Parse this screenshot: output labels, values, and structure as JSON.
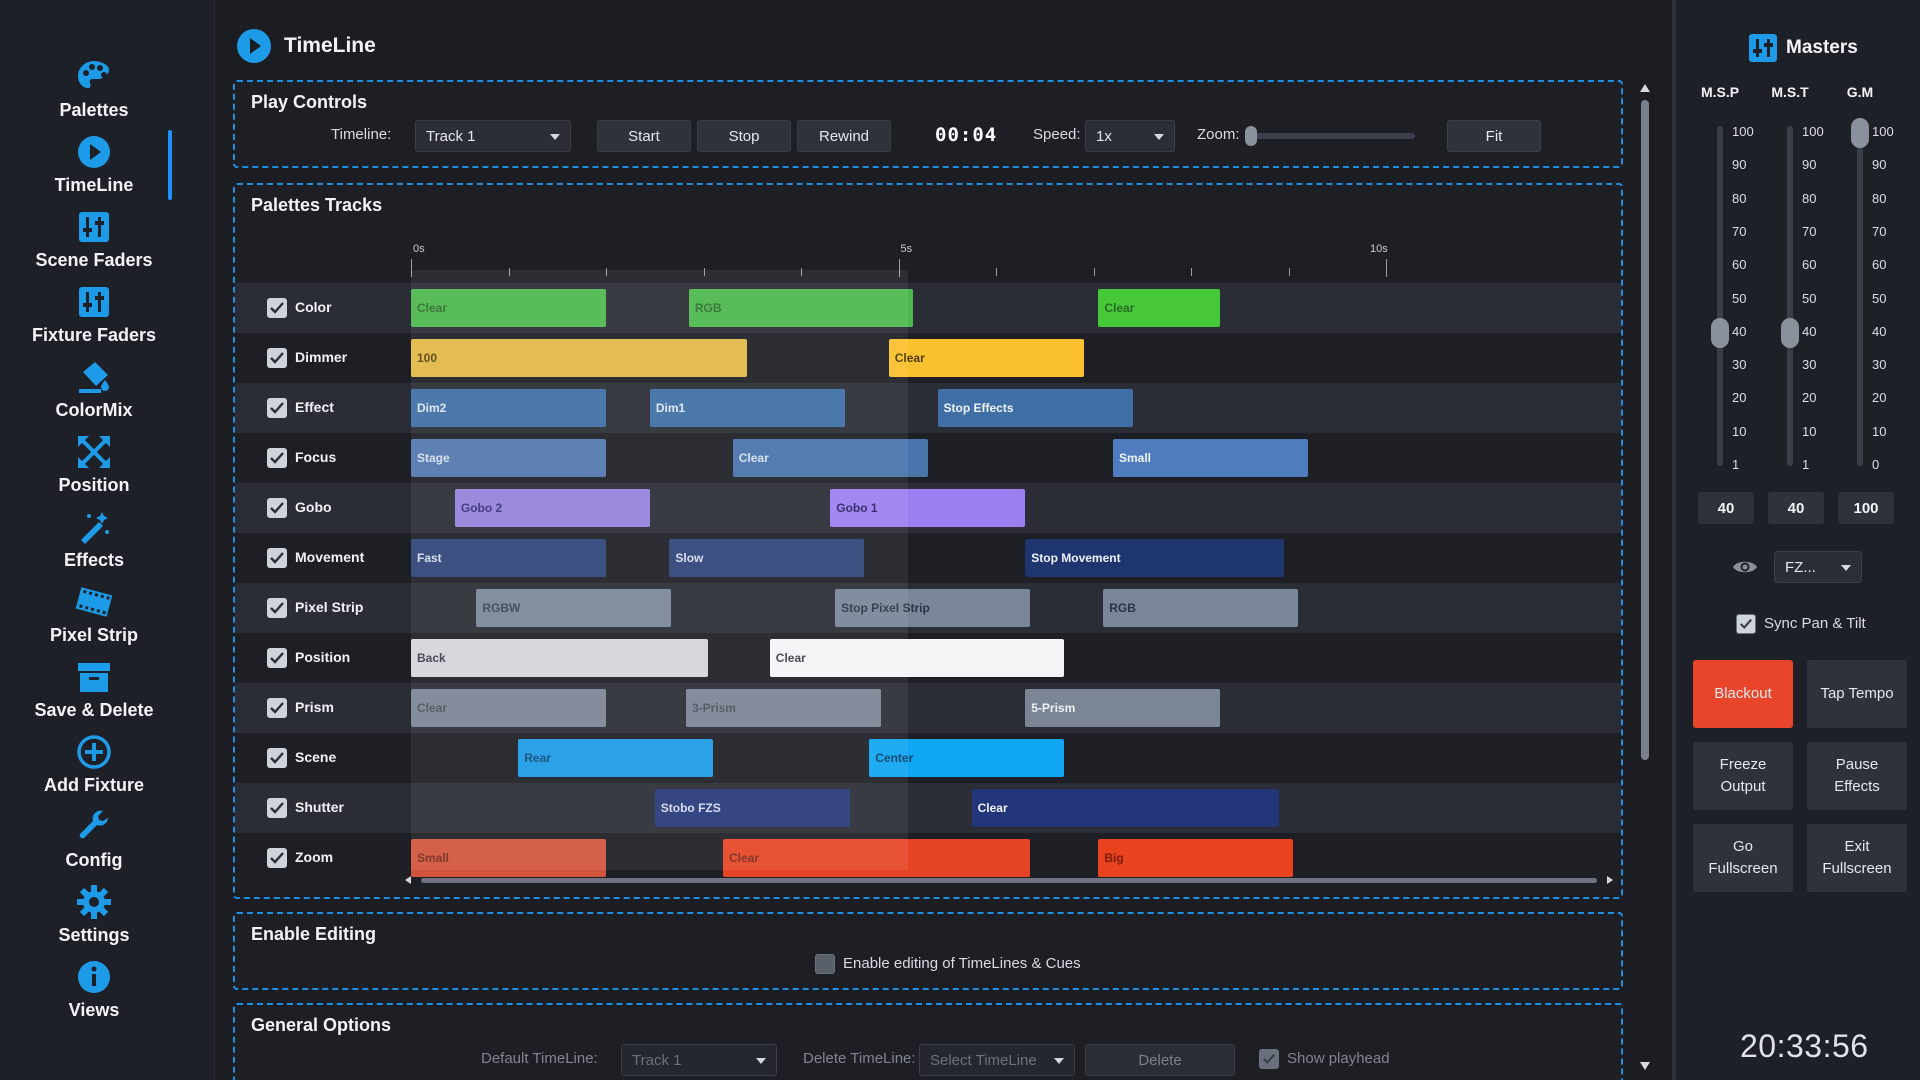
{
  "sidebar": {
    "items": [
      {
        "label": "Palettes",
        "icon": "palette-icon"
      },
      {
        "label": "TimeLine",
        "icon": "play-circle-icon"
      },
      {
        "label": "Scene Faders",
        "icon": "faders-icon"
      },
      {
        "label": "Fixture Faders",
        "icon": "faders-icon"
      },
      {
        "label": "ColorMix",
        "icon": "paint-bucket-icon"
      },
      {
        "label": "Position",
        "icon": "arrows-expand-icon"
      },
      {
        "label": "Effects",
        "icon": "magic-wand-icon"
      },
      {
        "label": "Pixel Strip",
        "icon": "film-strip-icon"
      },
      {
        "label": "Save & Delete",
        "icon": "archive-box-icon"
      },
      {
        "label": "Add Fixture",
        "icon": "plus-circle-icon"
      },
      {
        "label": "Config",
        "icon": "wrench-icon"
      },
      {
        "label": "Settings",
        "icon": "gear-icon"
      },
      {
        "label": "Views",
        "icon": "info-circle-icon"
      }
    ],
    "active": "TimeLine"
  },
  "main": {
    "title": "TimeLine",
    "play_controls": {
      "title": "Play Controls",
      "timeline_label": "Timeline:",
      "timeline_value": "Track 1",
      "start": "Start",
      "stop": "Stop",
      "rewind": "Rewind",
      "time": "00:04",
      "speed_label": "Speed:",
      "speed_value": "1x",
      "zoom_label": "Zoom:",
      "zoom_level": 0,
      "fit": "Fit"
    },
    "tracks_section": {
      "title": "Palettes Tracks",
      "ruler": [
        "0s",
        "5s",
        "10s"
      ],
      "tracks": [
        {
          "name": "Color",
          "cues": [
            {
              "label": "Clear",
              "color": "#4cb84c",
              "text": "#2f6e2f"
            },
            {
              "label": "RGB",
              "color": "#4cb84c",
              "text": "#2f6e2f"
            },
            {
              "label": "Clear",
              "color": "#46c83a",
              "text": "#2b6a22"
            }
          ]
        },
        {
          "name": "Dimmer",
          "cues": [
            {
              "label": "100",
              "color": "#e1b748",
              "text": "#5a4410"
            },
            {
              "label": "Clear",
              "color": "#fbc02d",
              "text": "#4d3a00"
            }
          ]
        },
        {
          "name": "Effect",
          "cues": [
            {
              "label": "Dim2",
              "color": "#3f6fa5",
              "text": "#dce6f3"
            },
            {
              "label": "Dim1",
              "color": "#3f6fa5",
              "text": "#dce6f3"
            },
            {
              "label": "Stop Effects",
              "color": "#3f6fa5",
              "text": "#eef3fa"
            }
          ]
        },
        {
          "name": "Focus",
          "cues": [
            {
              "label": "Stage",
              "color": "#5277ad",
              "text": "#d5e0ee"
            },
            {
              "label": "Clear",
              "color": "#4873ab",
              "text": "#d5e0ee"
            },
            {
              "label": "Small",
              "color": "#4f7cbf",
              "text": "#eef3fa"
            }
          ]
        },
        {
          "name": "Gobo",
          "cues": [
            {
              "label": "Gobo 2",
              "color": "#9482dc",
              "text": "#3a2d78"
            },
            {
              "label": "Gobo 1",
              "color": "#9c7ff0",
              "text": "#2d1f66"
            }
          ]
        },
        {
          "name": "Movement",
          "cues": [
            {
              "label": "Fast",
              "color": "#2e4478",
              "text": "#d5ddee"
            },
            {
              "label": "Slow",
              "color": "#2e4478",
              "text": "#d5ddee"
            },
            {
              "label": "Stop Movement",
              "color": "#1f3570",
              "text": "#eef2fa"
            }
          ]
        },
        {
          "name": "Pixel Strip",
          "cues": [
            {
              "label": "RGBW",
              "color": "#7c8697",
              "text": "#3c4452"
            },
            {
              "label": "Stop Pixel Strip",
              "color": "#7a8599",
              "text": "#2c3442"
            },
            {
              "label": "RGB",
              "color": "#7a8599",
              "text": "#2c3442"
            }
          ]
        },
        {
          "name": "Position",
          "cues": [
            {
              "label": "Back",
              "color": "#d3d6dc",
              "text": "#3b3f47"
            },
            {
              "label": "Clear",
              "color": "#f4f5f7",
              "text": "#3b3f47"
            }
          ]
        },
        {
          "name": "Prism",
          "cues": [
            {
              "label": "Clear",
              "color": "#7c8595",
              "text": "#4a5260"
            },
            {
              "label": "3-Prism",
              "color": "#7c8595",
              "text": "#4a5260"
            },
            {
              "label": "5-Prism",
              "color": "#7c8595",
              "text": "#eef1f5"
            }
          ]
        },
        {
          "name": "Scene",
          "cues": [
            {
              "label": "Rear",
              "color": "#1e9ae6",
              "text": "#0f4a78"
            },
            {
              "label": "Center",
              "color": "#0fa6f2",
              "text": "#083f66"
            }
          ]
        },
        {
          "name": "Shutter",
          "cues": [
            {
              "label": "Stobo FZS",
              "color": "#26387a",
              "text": "#d6dcf0"
            },
            {
              "label": "Clear",
              "color": "#23367a",
              "text": "#eef2fa"
            }
          ]
        },
        {
          "name": "Zoom",
          "cues": [
            {
              "label": "Small",
              "color": "#d1543c",
              "text": "#7a2a1c"
            },
            {
              "label": "Clear",
              "color": "#e64525",
              "text": "#7a2a1c"
            },
            {
              "label": "Big",
              "color": "#e8421e",
              "text": "#7a1e0c"
            }
          ]
        }
      ]
    },
    "enable_editing": {
      "title": "Enable Editing",
      "checkbox_label": "Enable editing of TimeLines & Cues"
    },
    "general_options": {
      "title": "General Options",
      "default_label": "Default TimeLine:",
      "default_value": "Track 1",
      "delete_label": "Delete TimeLine:",
      "delete_placeholder": "Select TimeLine",
      "delete_button": "Delete",
      "show_playhead": "Show playhead"
    }
  },
  "right": {
    "title": "Masters",
    "faders": [
      {
        "name": "M.S.P",
        "value": "40",
        "scale": [
          "100",
          "90",
          "80",
          "70",
          "60",
          "50",
          "40",
          "30",
          "20",
          "10",
          "1"
        ],
        "level": 40
      },
      {
        "name": "M.S.T",
        "value": "40",
        "scale": [
          "100",
          "90",
          "80",
          "70",
          "60",
          "50",
          "40",
          "30",
          "20",
          "10",
          "1"
        ],
        "level": 40
      },
      {
        "name": "G.M",
        "value": "100",
        "scale": [
          "100",
          "90",
          "80",
          "70",
          "60",
          "50",
          "40",
          "30",
          "20",
          "10",
          "0"
        ],
        "level": 100
      }
    ],
    "view_select": "FZ...",
    "sync_label": "Sync Pan & Tilt",
    "buttons": [
      "Blackout",
      "Tap Tempo",
      "Freeze Output",
      "Pause Effects",
      "Go Fullscreen",
      "Exit Fullscreen"
    ],
    "blackout_color": "#e8452a",
    "clock": "20:33:56"
  },
  "accent": "#1e8fe0"
}
